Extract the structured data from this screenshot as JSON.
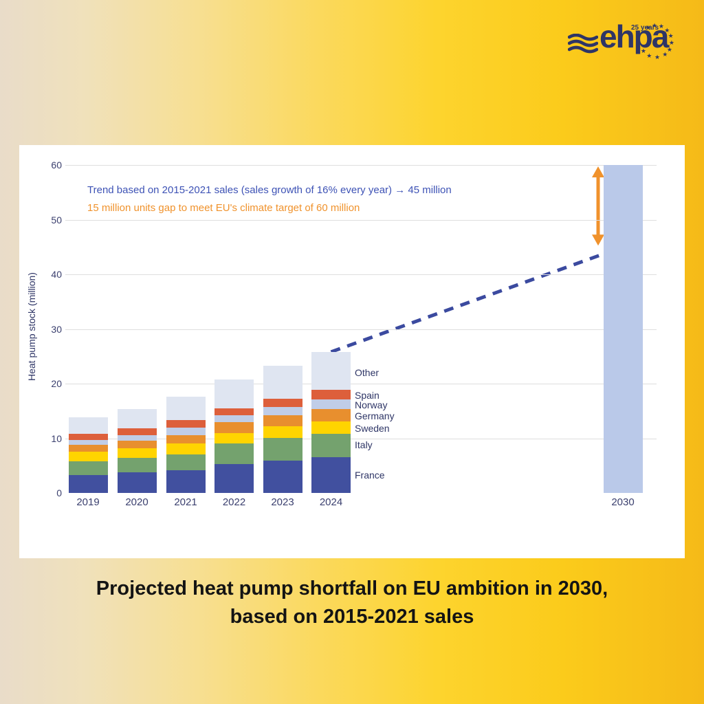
{
  "logo": {
    "brand": "ehpa",
    "anniversary": "25 years"
  },
  "caption": {
    "line1": "Projected heat pump shortfall on EU ambition in 2030,",
    "line2": "based on 2015-2021 sales"
  },
  "chart_data": {
    "type": "bar",
    "stacked": true,
    "title": "",
    "xlabel": "",
    "ylabel": "Heat pump stock (million)",
    "ylim": [
      0,
      60
    ],
    "yticks": [
      0,
      10,
      20,
      30,
      40,
      50,
      60
    ],
    "grid": "horizontal",
    "legend_position": "right-of-last-bar",
    "categories": [
      "2019",
      "2020",
      "2021",
      "2022",
      "2023",
      "2024"
    ],
    "series": [
      {
        "name": "France",
        "color": "#41509f",
        "values": [
          3.3,
          3.8,
          4.2,
          5.3,
          5.9,
          6.5
        ]
      },
      {
        "name": "Italy",
        "color": "#74a26e",
        "values": [
          2.5,
          2.6,
          2.9,
          3.7,
          4.2,
          4.3
        ]
      },
      {
        "name": "Sweden",
        "color": "#ffd400",
        "values": [
          1.8,
          1.8,
          2.0,
          2.0,
          2.1,
          2.3
        ]
      },
      {
        "name": "Germany",
        "color": "#e88f2e",
        "values": [
          1.2,
          1.3,
          1.5,
          1.9,
          2.0,
          2.3
        ]
      },
      {
        "name": "Norway",
        "color": "#c0cde7",
        "values": [
          0.9,
          1.1,
          1.3,
          1.3,
          1.5,
          1.7
        ]
      },
      {
        "name": "Spain",
        "color": "#dd5f3b",
        "values": [
          1.1,
          1.2,
          1.4,
          1.3,
          1.5,
          1.8
        ]
      },
      {
        "name": "Other",
        "color": "#dfe5f1",
        "values": [
          3.0,
          3.6,
          4.3,
          5.2,
          6.1,
          6.9
        ]
      }
    ],
    "totals": [
      13.8,
      15.4,
      17.6,
      20.7,
      23.3,
      25.8
    ],
    "target_bar": {
      "category": "2030",
      "value": 60,
      "color": "#bac9e9"
    },
    "trend_line": {
      "style": "dashed",
      "color": "#3b4a9f",
      "start": {
        "category": "2024",
        "value": 25.8
      },
      "end": {
        "category": "2030",
        "value": 45
      }
    },
    "gap_arrow": {
      "from": 45,
      "to": 60,
      "color": "#f0922c"
    },
    "annotations": [
      {
        "id": "trend",
        "color": "#3d52b5",
        "text": "Trend based on 2015-2021 sales (sales growth of 16% every year) → 45 million"
      },
      {
        "id": "gap",
        "color": "#f0922c",
        "text": "15 million units gap to meet EU's climate target of 60 million"
      }
    ]
  }
}
